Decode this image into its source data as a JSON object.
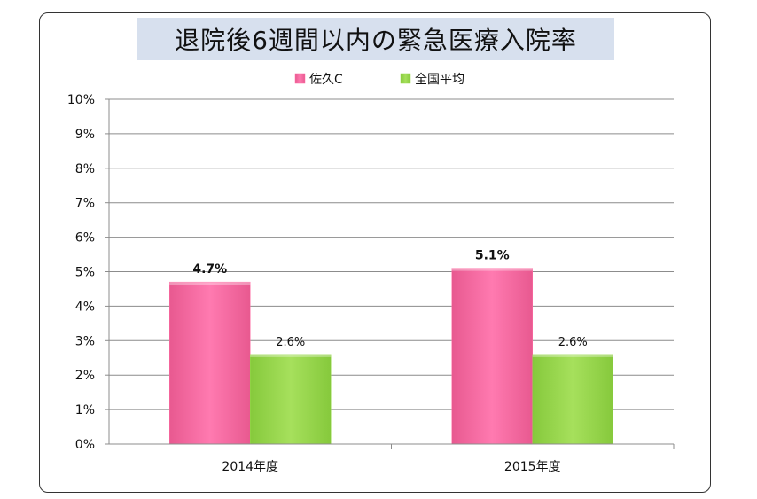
{
  "title": "退院後6週間以内の緊急医療入院率",
  "chart_data": {
    "type": "bar",
    "categories": [
      "2014年度",
      "2015年度"
    ],
    "series": [
      {
        "name": "佐久C",
        "values": [
          4.7,
          5.1
        ],
        "labels": [
          "4.7%",
          "5.1%"
        ],
        "color": "#ff6fa6"
      },
      {
        "name": "全国平均",
        "values": [
          2.6,
          2.6
        ],
        "labels": [
          "2.6%",
          "2.6%"
        ],
        "color": "#99d94f"
      }
    ],
    "y_ticks": [
      "0%",
      "1%",
      "2%",
      "3%",
      "4%",
      "5%",
      "6%",
      "7%",
      "8%",
      "9%",
      "10%"
    ],
    "ylim": [
      0,
      10
    ],
    "grid": true,
    "legend_position": "top"
  }
}
